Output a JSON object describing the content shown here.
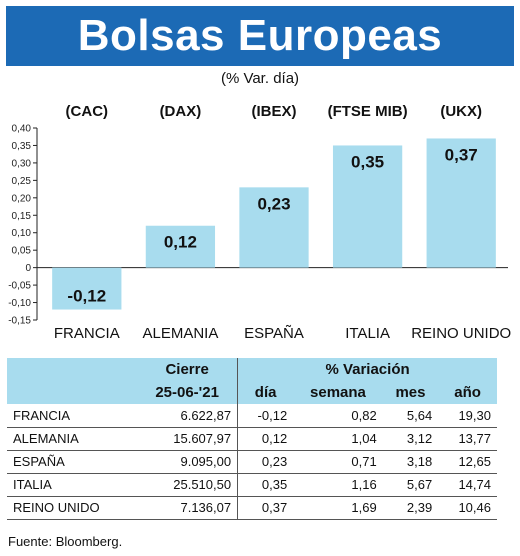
{
  "header": {
    "title": "Bolsas Europeas",
    "subtitle": "(% Var. día)"
  },
  "chart_data": {
    "type": "bar",
    "title": "Bolsas Europeas",
    "subtitle": "(% Var. día)",
    "index_codes": [
      "(CAC)",
      "(DAX)",
      "(IBEX)",
      "(FTSE MIB)",
      "(UKX)"
    ],
    "categories": [
      "FRANCIA",
      "ALEMANIA",
      "ESPAÑA",
      "ITALIA",
      "REINO UNIDO"
    ],
    "values": [
      -0.12,
      0.12,
      0.23,
      0.35,
      0.37
    ],
    "value_labels": [
      "-0,12",
      "0,12",
      "0,23",
      "0,35",
      "0,37"
    ],
    "ylim": [
      -0.15,
      0.4
    ],
    "yticks": [
      -0.15,
      -0.1,
      -0.05,
      0,
      0.05,
      0.1,
      0.15,
      0.2,
      0.25,
      0.3,
      0.35,
      0.4
    ],
    "ytick_labels": [
      "-0,15",
      "-0,10",
      "-0,05",
      "0",
      "0,05",
      "0,10",
      "0,15",
      "0,20",
      "0,25",
      "0,30",
      "0,35",
      "0,40"
    ],
    "bar_color": "#a8dcee",
    "grid": false
  },
  "table": {
    "header_cierre": "Cierre",
    "header_variacion": "% Variación",
    "header_date": "25-06-'21",
    "cols": [
      "día",
      "semana",
      "mes",
      "año"
    ],
    "rows": [
      {
        "country": "FRANCIA",
        "cierre": "6.622,87",
        "dia": "-0,12",
        "semana": "0,82",
        "mes": "5,64",
        "ano": "19,30"
      },
      {
        "country": "ALEMANIA",
        "cierre": "15.607,97",
        "dia": "0,12",
        "semana": "1,04",
        "mes": "3,12",
        "ano": "13,77"
      },
      {
        "country": "ESPAÑA",
        "cierre": "9.095,00",
        "dia": "0,23",
        "semana": "0,71",
        "mes": "3,18",
        "ano": "12,65"
      },
      {
        "country": "ITALIA",
        "cierre": "25.510,50",
        "dia": "0,35",
        "semana": "1,16",
        "mes": "5,67",
        "ano": "14,74"
      },
      {
        "country": "REINO UNIDO",
        "cierre": "7.136,07",
        "dia": "0,37",
        "semana": "1,69",
        "mes": "2,39",
        "ano": "10,46"
      }
    ]
  },
  "footer": {
    "source": "Fuente: Bloomberg."
  },
  "colors": {
    "title_bar": "#1c6ab5",
    "title_text": "#ffffff",
    "accent_light": "#a8dcee"
  }
}
